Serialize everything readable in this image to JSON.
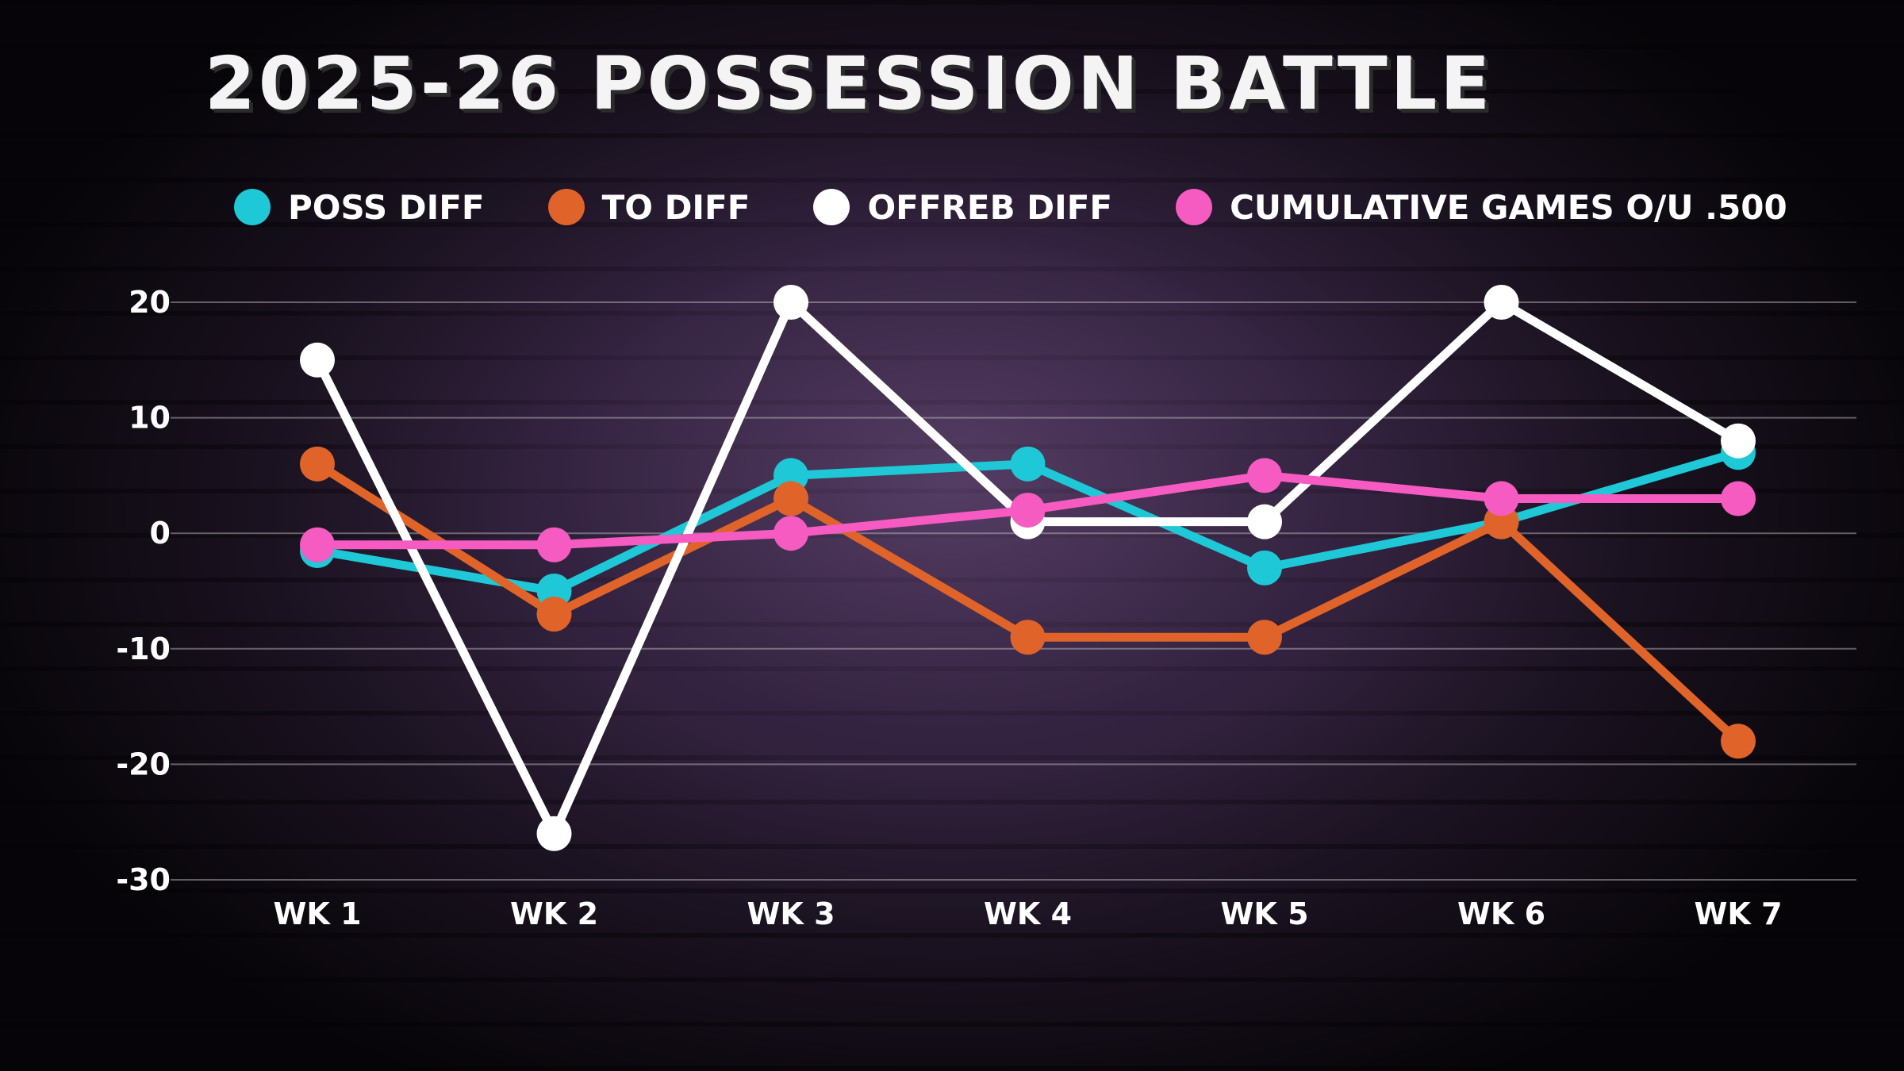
{
  "chart_data": {
    "type": "line",
    "title": "2025-26 POSSESSION BATTLE",
    "xlabel": "",
    "ylabel": "",
    "categories": [
      "WK 1",
      "WK 2",
      "WK 3",
      "WK 4",
      "WK 5",
      "WK 6",
      "WK 7"
    ],
    "ylim": [
      -30,
      20
    ],
    "yticks": [
      "20",
      "10",
      "0",
      "-10",
      "-20",
      "-30"
    ],
    "grid": true,
    "legend_position": "top",
    "series": [
      {
        "name": "POSS DIFF",
        "color": "#1ec8d6",
        "values": [
          -1.5,
          -5,
          5,
          6,
          -3,
          1,
          7
        ]
      },
      {
        "name": "TO DIFF",
        "color": "#e0632a",
        "values": [
          6,
          -7,
          3,
          -9,
          -9,
          1,
          -18
        ]
      },
      {
        "name": "OFFREB DIFF",
        "color": "#ffffff",
        "values": [
          15,
          -26,
          20,
          1,
          1,
          20,
          8
        ]
      },
      {
        "name": "CUMULATIVE GAMES O/U .500",
        "color": "#f55bc0",
        "values": [
          -1,
          -1,
          0,
          2,
          5,
          3,
          3
        ]
      }
    ]
  }
}
